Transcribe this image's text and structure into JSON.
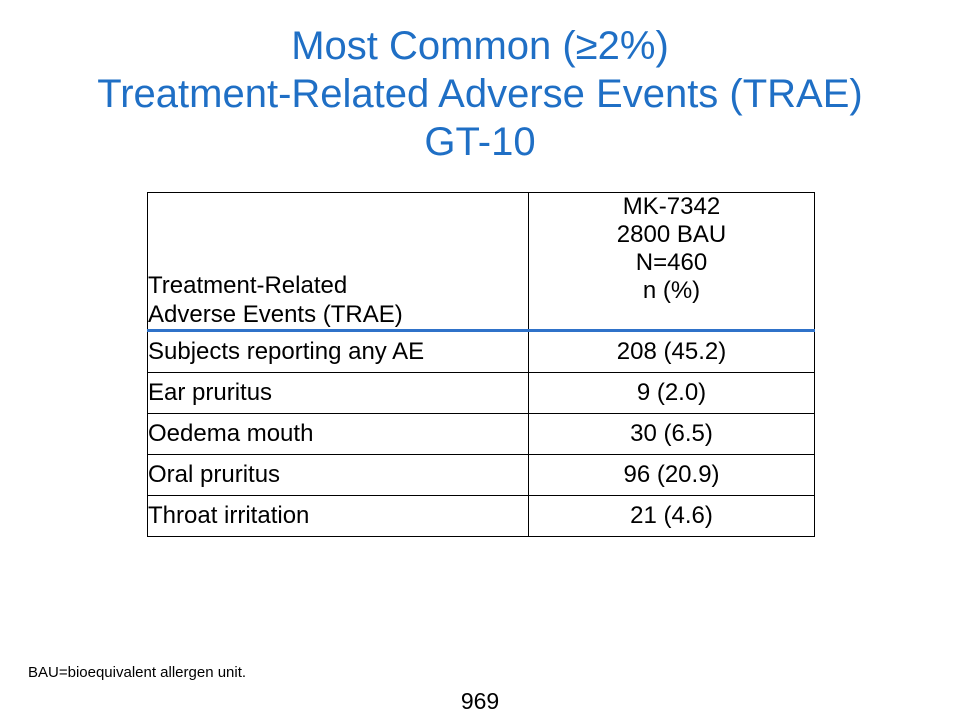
{
  "title": {
    "line1": "Most Common (≥2%)",
    "line2": "Treatment-Related Adverse Events (TRAE)",
    "line3": "GT-10"
  },
  "table": {
    "header": {
      "col1_line1": "Treatment-Related",
      "col1_line2": "Adverse Events (TRAE)",
      "col2_line1": "MK-7342",
      "col2_line2": "2800 BAU",
      "col2_line3": "N=460",
      "col2_line4": "n (%)"
    },
    "rows": [
      {
        "event": "Subjects reporting any AE",
        "value": "208 (45.2)"
      },
      {
        "event": "Ear pruritus",
        "value": "9 (2.0)"
      },
      {
        "event": "Oedema mouth",
        "value": "30 (6.5)"
      },
      {
        "event": "Oral pruritus",
        "value": "96 (20.9)"
      },
      {
        "event": "Throat irritation",
        "value": "21 (4.6)"
      }
    ]
  },
  "footnote": "BAU=bioequivalent allergen unit.",
  "page_number": "969",
  "colors": {
    "title": "#1f6fc5",
    "header_rule": "#2f72c9"
  }
}
